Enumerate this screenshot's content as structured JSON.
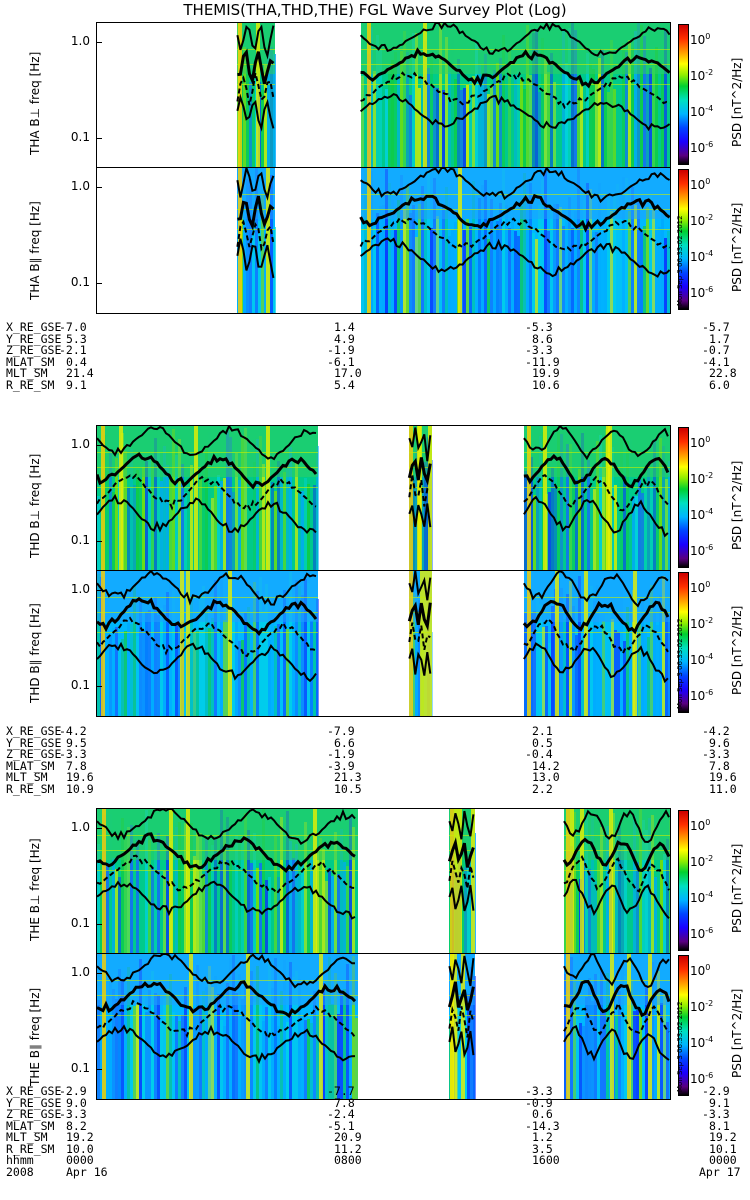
{
  "title": "THEMIS(THA,THD,THE) FGL Wave Survey Plot (Log)",
  "colorbar": {
    "ticks": [
      "10^0",
      "10^-2",
      "10^-4",
      "10^-6"
    ],
    "unit": "PSD [nT^2/Hz]",
    "scale": "log",
    "colors": [
      "#000000",
      "#5a0080",
      "#1a00ff",
      "#0044ff",
      "#00b4ff",
      "#00e0c0",
      "#00d030",
      "#90ee00",
      "#ffff00",
      "#ffa000",
      "#ff3000",
      "#cc0000"
    ]
  },
  "stamp": "Mon Sep 3 06:33:02 2012",
  "y_tick_labels": [
    "1.0",
    "0.1"
  ],
  "ephemeris_labels": [
    "X_RE_GSE",
    "Y_RE_GSE",
    "Z_RE_GSE",
    "MLAT_SM",
    "MLT_SM",
    "R_RE_SM"
  ],
  "time_labels": {
    "row_label": "hhmm",
    "year": "2008",
    "ticks": [
      "0000",
      "0800",
      "1600",
      "0000"
    ],
    "dates": [
      "Apr 16",
      "",
      "",
      "Apr 17"
    ]
  },
  "chart_data": {
    "type": "heatmap",
    "x": [
      "0000",
      "0800",
      "1600",
      "0000"
    ],
    "ylabel_unit": "freq [Hz]",
    "ylim": [
      0.05,
      1.6
    ],
    "yscale": "log",
    "probes": [
      {
        "name": "THA",
        "panels": [
          {
            "label": "THA B⊥",
            "data_intervals": [
              [
                0.245,
                0.31
              ],
              [
                0.46,
                1.0
              ]
            ],
            "gaps": [
              [
                0.0,
                0.245
              ],
              [
                0.31,
                0.46
              ],
              [
                1.0,
                1.0
              ]
            ]
          },
          {
            "label": "THA B∥",
            "data_intervals": [
              [
                0.245,
                0.31
              ],
              [
                0.46,
                1.0
              ]
            ],
            "gaps": [
              [
                0.0,
                0.245
              ],
              [
                0.31,
                0.46
              ],
              [
                1.0,
                1.0
              ]
            ]
          }
        ],
        "ephemeris": [
          [
            "-7.0",
            "1.4",
            "-5.3",
            "-5.7"
          ],
          [
            "5.3",
            "4.9",
            "8.6",
            "1.7"
          ],
          [
            "-2.1",
            "-1.9",
            "-3.3",
            "-0.7"
          ],
          [
            "0.4",
            "-6.1",
            "-11.9",
            "-4.1"
          ],
          [
            "21.4",
            "17.0",
            "19.9",
            "22.8"
          ],
          [
            "9.1",
            "5.4",
            "10.6",
            "6.0"
          ]
        ]
      },
      {
        "name": "THD",
        "panels": [
          {
            "label": "THD B⊥",
            "data_intervals": [
              [
                0.0,
                0.385
              ],
              [
                0.545,
                0.585
              ],
              [
                0.745,
                1.0
              ]
            ],
            "gaps": [
              [
                0.385,
                0.545
              ],
              [
                0.585,
                0.745
              ]
            ]
          },
          {
            "label": "THD B∥",
            "data_intervals": [
              [
                0.0,
                0.385
              ],
              [
                0.545,
                0.585
              ],
              [
                0.745,
                1.0
              ]
            ],
            "gaps": [
              [
                0.385,
                0.545
              ],
              [
                0.585,
                0.745
              ]
            ]
          }
        ],
        "ephemeris": [
          [
            "-4.2",
            "-7.9",
            "2.1",
            "-4.2"
          ],
          [
            "9.5",
            "6.6",
            "0.5",
            "9.6"
          ],
          [
            "-3.3",
            "-1.9",
            "-0.4",
            "-3.3"
          ],
          [
            "7.8",
            "-3.9",
            "14.2",
            "7.8"
          ],
          [
            "19.6",
            "21.3",
            "13.0",
            "19.6"
          ],
          [
            "10.9",
            "10.5",
            "2.2",
            "11.0"
          ]
        ]
      },
      {
        "name": "THE",
        "panels": [
          {
            "label": "THE B⊥",
            "data_intervals": [
              [
                0.0,
                0.455
              ],
              [
                0.615,
                0.66
              ],
              [
                0.815,
                1.0
              ]
            ],
            "gaps": [
              [
                0.455,
                0.615
              ],
              [
                0.66,
                0.815
              ]
            ]
          },
          {
            "label": "THE B∥",
            "data_intervals": [
              [
                0.0,
                0.455
              ],
              [
                0.615,
                0.66
              ],
              [
                0.815,
                1.0
              ]
            ],
            "gaps": [
              [
                0.455,
                0.615
              ],
              [
                0.66,
                0.815
              ]
            ]
          }
        ],
        "ephemeris": [
          [
            "-2.9",
            "-7.7",
            "-3.3",
            "-2.9"
          ],
          [
            "9.0",
            "7.8",
            "-0.9",
            "9.1"
          ],
          [
            "-3.3",
            "-2.4",
            "0.6",
            "-3.3"
          ],
          [
            "8.2",
            "-5.1",
            "-14.3",
            "8.1"
          ],
          [
            "19.2",
            "20.9",
            "1.2",
            "19.2"
          ],
          [
            "10.0",
            "11.2",
            "3.5",
            "10.1"
          ]
        ]
      }
    ]
  }
}
